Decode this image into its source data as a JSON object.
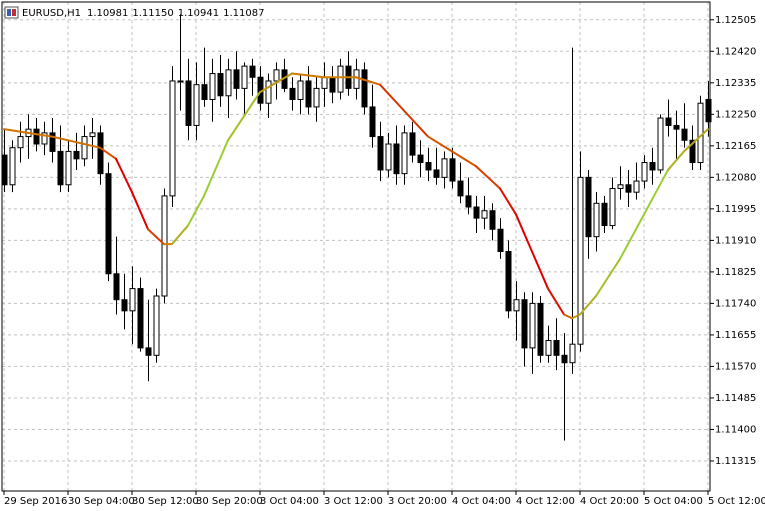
{
  "chart_data": {
    "type": "candlestick",
    "title": "EURUSD,H1",
    "header": {
      "values": [
        1.10981,
        1.1115,
        1.10941,
        1.11087
      ],
      "value_labels": [
        "1.10981",
        "1.11150",
        "1.10941",
        "1.11087"
      ]
    },
    "categories": [
      "29 Sep 2016",
      null,
      null,
      null,
      null,
      null,
      null,
      null,
      "30 Sep 04:00",
      null,
      null,
      null,
      null,
      null,
      null,
      null,
      "30 Sep 12:00",
      null,
      null,
      null,
      null,
      null,
      null,
      null,
      "30 Sep 20:00",
      null,
      null,
      null,
      null,
      null,
      null,
      null,
      "3 Oct 04:00",
      null,
      null,
      null,
      null,
      null,
      null,
      null,
      "3 Oct 12:00",
      null,
      null,
      null,
      null,
      null,
      null,
      null,
      "3 Oct 20:00",
      null,
      null,
      null,
      null,
      null,
      null,
      null,
      "4 Oct 04:00",
      null,
      null,
      null,
      null,
      null,
      null,
      null,
      "4 Oct 12:00",
      null,
      null,
      null,
      null,
      null,
      null,
      null,
      "4 Oct 20:00",
      null,
      null,
      null,
      null,
      null,
      null,
      null,
      "5 Oct 04:00",
      null,
      null,
      null,
      null,
      null,
      null,
      null,
      "5 Oct 12:00"
    ],
    "open": [
      1.1214,
      1.1206,
      1.1216,
      1.1219,
      1.1221,
      1.1217,
      1.122,
      1.1215,
      1.1206,
      1.1215,
      1.1213,
      1.1219,
      1.122,
      1.1209,
      1.1182,
      1.1175,
      1.1172,
      1.1178,
      1.1162,
      1.116,
      1.1176,
      1.1203,
      1.1234,
      1.1234,
      1.1222,
      1.1233,
      1.1229,
      1.1236,
      1.123,
      1.1237,
      1.1232,
      1.1238,
      1.1235,
      1.1228,
      1.1234,
      1.1237,
      1.1232,
      1.1229,
      1.1234,
      1.1227,
      1.1232,
      1.1235,
      1.1231,
      1.1238,
      1.1232,
      1.1237,
      1.1227,
      1.1219,
      1.121,
      1.1217,
      1.1209,
      1.122,
      1.1214,
      1.1212,
      1.121,
      1.1208,
      1.1213,
      1.1207,
      1.1203,
      1.12,
      1.1197,
      1.1199,
      1.1194,
      1.1188,
      1.1172,
      1.1175,
      1.1162,
      1.1174,
      1.116,
      1.1164,
      1.116,
      1.1158,
      1.1163,
      1.1208,
      1.1192,
      1.1201,
      1.1195,
      1.1205,
      1.1206,
      1.1204,
      1.1207,
      1.1212,
      1.121,
      1.1224,
      1.1222,
      1.1221,
      1.1218,
      1.1212,
      1.1229
    ],
    "high": [
      1.1221,
      1.1218,
      1.1223,
      1.1225,
      1.1224,
      1.1223,
      1.1224,
      1.1222,
      1.1218,
      1.122,
      1.1222,
      1.1224,
      1.1222,
      1.1212,
      1.1192,
      1.1182,
      1.1184,
      1.1181,
      1.1175,
      1.1178,
      1.1205,
      1.1238,
      1.1252,
      1.124,
      1.1239,
      1.1243,
      1.124,
      1.1241,
      1.124,
      1.1242,
      1.1239,
      1.124,
      1.1238,
      1.1236,
      1.1239,
      1.124,
      1.1235,
      1.1236,
      1.1238,
      1.1235,
      1.1239,
      1.1238,
      1.124,
      1.1242,
      1.124,
      1.1239,
      1.1233,
      1.1223,
      1.122,
      1.1222,
      1.1222,
      1.1223,
      1.1218,
      1.1216,
      1.1216,
      1.1215,
      1.1216,
      1.1212,
      1.1208,
      1.1203,
      1.1203,
      1.1201,
      1.1197,
      1.1191,
      1.118,
      1.1177,
      1.1177,
      1.1176,
      1.1168,
      1.117,
      1.1166,
      1.1243,
      1.1215,
      1.121,
      1.1204,
      1.1203,
      1.1208,
      1.1211,
      1.121,
      1.1212,
      1.1214,
      1.1216,
      1.1225,
      1.1229,
      1.1226,
      1.1228,
      1.1222,
      1.123,
      1.1234
    ],
    "low": [
      1.1204,
      1.1204,
      1.1212,
      1.1213,
      1.1215,
      1.1214,
      1.1212,
      1.1204,
      1.1204,
      1.121,
      1.1211,
      1.1213,
      1.1206,
      1.118,
      1.1171,
      1.1167,
      1.1163,
      1.1161,
      1.1153,
      1.1158,
      1.1174,
      1.12,
      1.1226,
      1.1218,
      1.1218,
      1.1227,
      1.1223,
      1.1227,
      1.1224,
      1.1229,
      1.1225,
      1.123,
      1.1226,
      1.1224,
      1.1229,
      1.1231,
      1.1226,
      1.1225,
      1.1225,
      1.1223,
      1.1227,
      1.1228,
      1.1229,
      1.123,
      1.1229,
      1.1225,
      1.1216,
      1.1207,
      1.1208,
      1.1206,
      1.1206,
      1.1212,
      1.1208,
      1.1207,
      1.1206,
      1.1205,
      1.1205,
      1.1201,
      1.1198,
      1.1193,
      1.1194,
      1.1191,
      1.1186,
      1.117,
      1.1164,
      1.1157,
      1.1155,
      1.1158,
      1.1158,
      1.1156,
      1.1137,
      1.1155,
      1.1161,
      1.1186,
      1.1188,
      1.1193,
      1.1194,
      1.1202,
      1.12,
      1.1202,
      1.1205,
      1.1206,
      1.1209,
      1.1219,
      1.1213,
      1.1216,
      1.121,
      1.121,
      1.1219
    ],
    "close": [
      1.1206,
      1.1216,
      1.1219,
      1.1221,
      1.1217,
      1.122,
      1.1215,
      1.1206,
      1.1215,
      1.1213,
      1.1219,
      1.122,
      1.1209,
      1.1182,
      1.1175,
      1.1172,
      1.1178,
      1.1162,
      1.116,
      1.1176,
      1.1203,
      1.1234,
      1.1234,
      1.1222,
      1.1233,
      1.1229,
      1.1236,
      1.123,
      1.1237,
      1.1232,
      1.1238,
      1.1235,
      1.1228,
      1.1234,
      1.1237,
      1.1232,
      1.1229,
      1.1234,
      1.1227,
      1.1232,
      1.1235,
      1.1231,
      1.1238,
      1.1232,
      1.1237,
      1.1227,
      1.1219,
      1.121,
      1.1217,
      1.1209,
      1.122,
      1.1214,
      1.1212,
      1.121,
      1.1208,
      1.1213,
      1.1207,
      1.1203,
      1.12,
      1.1197,
      1.1199,
      1.1194,
      1.1188,
      1.1172,
      1.1175,
      1.1162,
      1.1174,
      1.116,
      1.1164,
      1.116,
      1.1158,
      1.1163,
      1.1208,
      1.1192,
      1.1201,
      1.1195,
      1.1205,
      1.1206,
      1.1204,
      1.1207,
      1.1212,
      1.121,
      1.1224,
      1.1222,
      1.1221,
      1.1218,
      1.1212,
      1.1228,
      1.1223
    ],
    "ma": {
      "x": [
        0,
        6,
        12,
        14,
        16,
        18,
        20,
        21,
        23,
        25,
        28,
        32,
        36,
        40,
        44,
        47,
        50,
        53,
        56,
        59,
        62,
        64,
        66,
        68,
        70,
        71,
        72,
        74,
        77,
        80,
        83,
        85,
        88
      ],
      "values": [
        1.1221,
        1.1219,
        1.1216,
        1.1213,
        1.1204,
        1.1194,
        1.119,
        1.119,
        1.1195,
        1.1203,
        1.1218,
        1.1231,
        1.1236,
        1.1235,
        1.1235,
        1.1233,
        1.1226,
        1.1219,
        1.1215,
        1.1211,
        1.1205,
        1.1198,
        1.1188,
        1.1178,
        1.1171,
        1.117,
        1.1171,
        1.1176,
        1.1186,
        1.1198,
        1.121,
        1.1215,
        1.1221
      ],
      "colors": [
        "#e00000",
        "#d08000",
        "#9acd32"
      ]
    },
    "colors": {
      "up": "#ffffff",
      "down": "#000000",
      "outline": "#000000"
    },
    "ylim": [
      1.11234,
      1.12553
    ],
    "yticks": [
      1.12505,
      {
        "value": 1.1242,
        "label": "1.12420"
      },
      1.12335,
      {
        "value": 1.1225,
        "label": "1.12250"
      },
      1.12165,
      {
        "value": 1.1208,
        "label": "1.12080"
      },
      1.11995,
      {
        "value": 1.1191,
        "label": "1.11910"
      },
      1.11825,
      {
        "value": 1.1174,
        "label": "1.11740"
      },
      1.11655,
      {
        "value": 1.1157,
        "label": "1.11570"
      },
      1.11485,
      {
        "value": 1.114,
        "label": "1.11400"
      },
      1.11315
    ],
    "grid": true
  }
}
